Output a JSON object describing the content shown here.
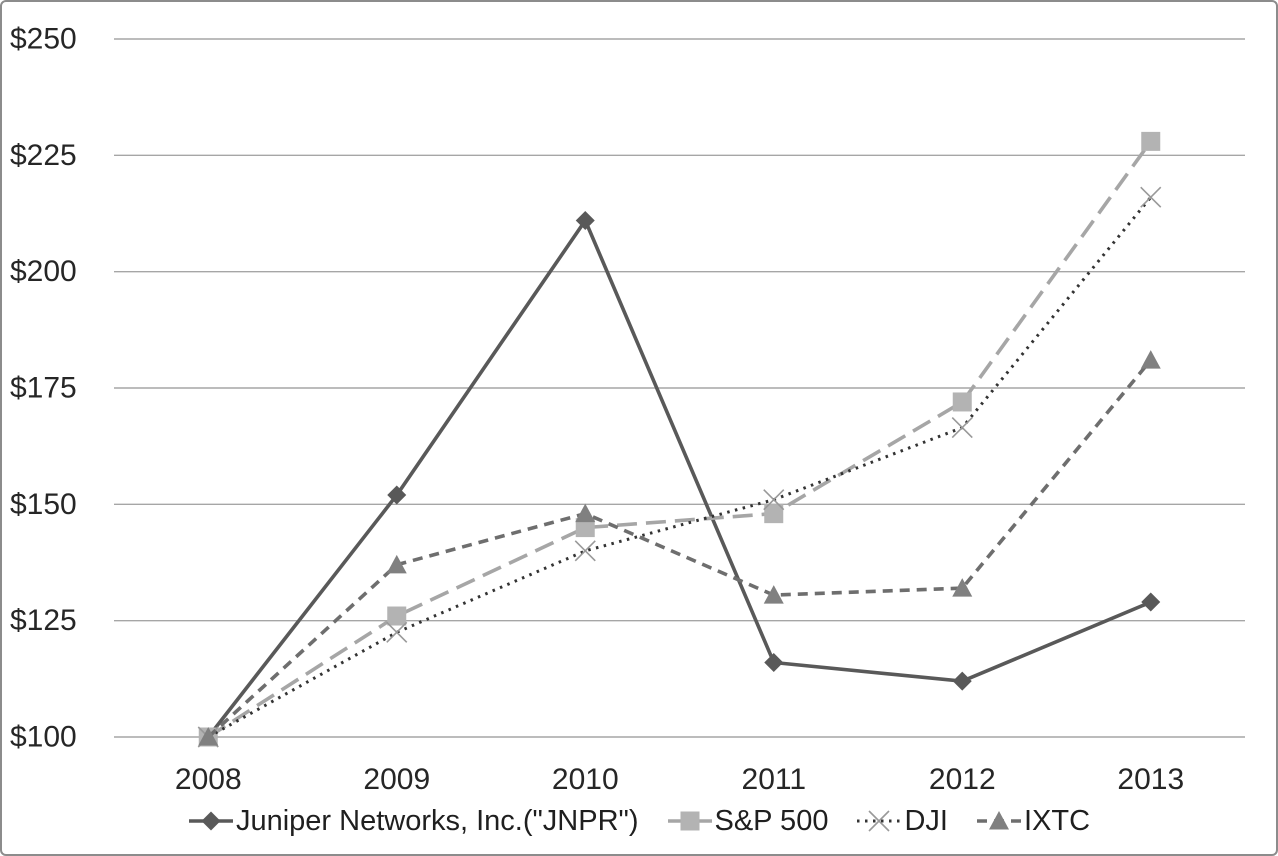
{
  "chart_data": {
    "type": "line",
    "title": "",
    "xlabel": "",
    "ylabel": "",
    "x": [
      "2008",
      "2009",
      "2010",
      "2011",
      "2012",
      "2013"
    ],
    "series": [
      {
        "name": "Juniper Networks, Inc.(\"JNPR\")",
        "values": [
          100,
          152,
          211,
          116,
          112,
          129
        ],
        "color": "#595959",
        "marker": "diamond",
        "marker_color": "#595959",
        "line_style": "solid"
      },
      {
        "name": "S&P 500",
        "values": [
          100,
          126,
          145,
          148,
          172,
          228
        ],
        "color": "#a6a6a6",
        "marker": "square",
        "marker_color": "#b3b3b3",
        "line_style": "long-dash"
      },
      {
        "name": "DJI",
        "values": [
          100,
          122.5,
          140,
          151,
          166.5,
          216
        ],
        "color": "#333333",
        "marker": "x",
        "marker_color": "#999999",
        "line_style": "dotted"
      },
      {
        "name": "IXTC",
        "values": [
          100,
          137,
          148,
          130.5,
          132,
          181
        ],
        "color": "#6e6e6e",
        "marker": "triangle",
        "marker_color": "#808080",
        "line_style": "dash"
      }
    ],
    "ylim": [
      100,
      250
    ],
    "ytick_step": 25,
    "ytick_prefix": "$",
    "ytick_labels": [
      "$100",
      "$125",
      "$150",
      "$175",
      "$200",
      "$225",
      "$250"
    ],
    "grid": "horizontal",
    "gridline_color": "#a6a6a6",
    "legend_position": "bottom",
    "text_color": "#262626"
  }
}
